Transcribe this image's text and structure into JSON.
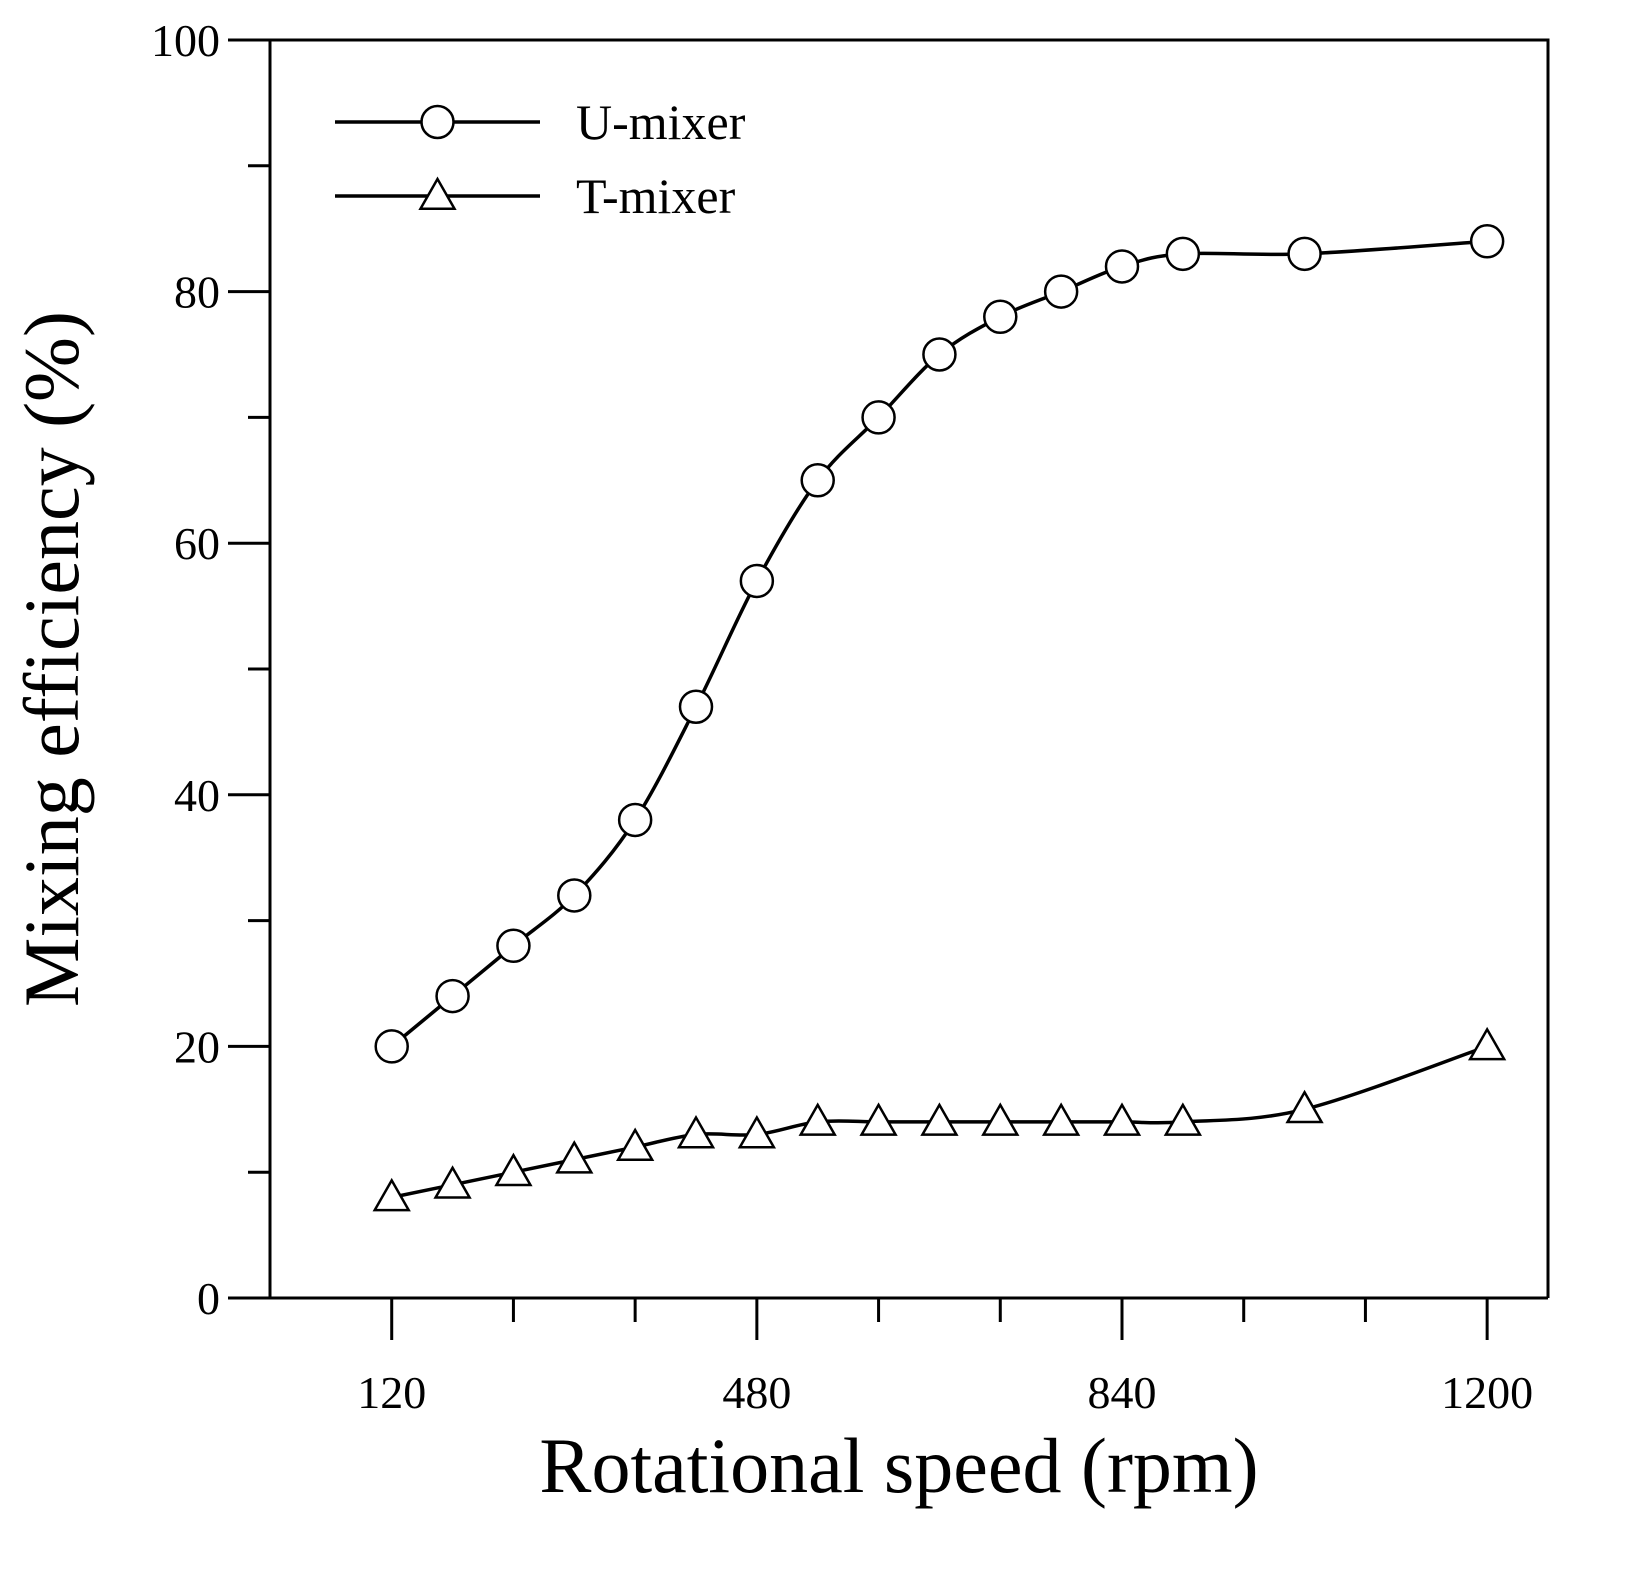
{
  "chart_data": {
    "type": "line",
    "title": "",
    "xlabel": "Rotational speed (rpm)",
    "ylabel": "Mixing efficiency (%)",
    "xlim": [
      0,
      1260
    ],
    "ylim": [
      0,
      100
    ],
    "xticks_major": [
      120,
      480,
      840,
      1200
    ],
    "xticks_minor": [
      240,
      360,
      600,
      720,
      960,
      1080
    ],
    "yticks_major": [
      0,
      20,
      40,
      60,
      80,
      100
    ],
    "yticks_minor": [
      10,
      30,
      50,
      70,
      90
    ],
    "grid": false,
    "legend_position": "top-left",
    "series": [
      {
        "name": "U-mixer",
        "marker": "circle",
        "color": "#000000",
        "x": [
          120,
          180,
          240,
          300,
          360,
          420,
          480,
          540,
          600,
          660,
          720,
          780,
          840,
          900,
          1020,
          1200
        ],
        "values": [
          20,
          24,
          28,
          32,
          38,
          47,
          57,
          65,
          70,
          75,
          78,
          80,
          82,
          83,
          83,
          84
        ]
      },
      {
        "name": "T-mixer",
        "marker": "triangle",
        "color": "#000000",
        "x": [
          120,
          180,
          240,
          300,
          360,
          420,
          480,
          540,
          600,
          660,
          720,
          780,
          840,
          900,
          1020,
          1200
        ],
        "values": [
          8,
          9,
          10,
          11,
          12,
          13,
          13,
          14,
          14,
          14,
          14,
          14,
          14,
          14,
          15,
          20
        ]
      }
    ]
  }
}
